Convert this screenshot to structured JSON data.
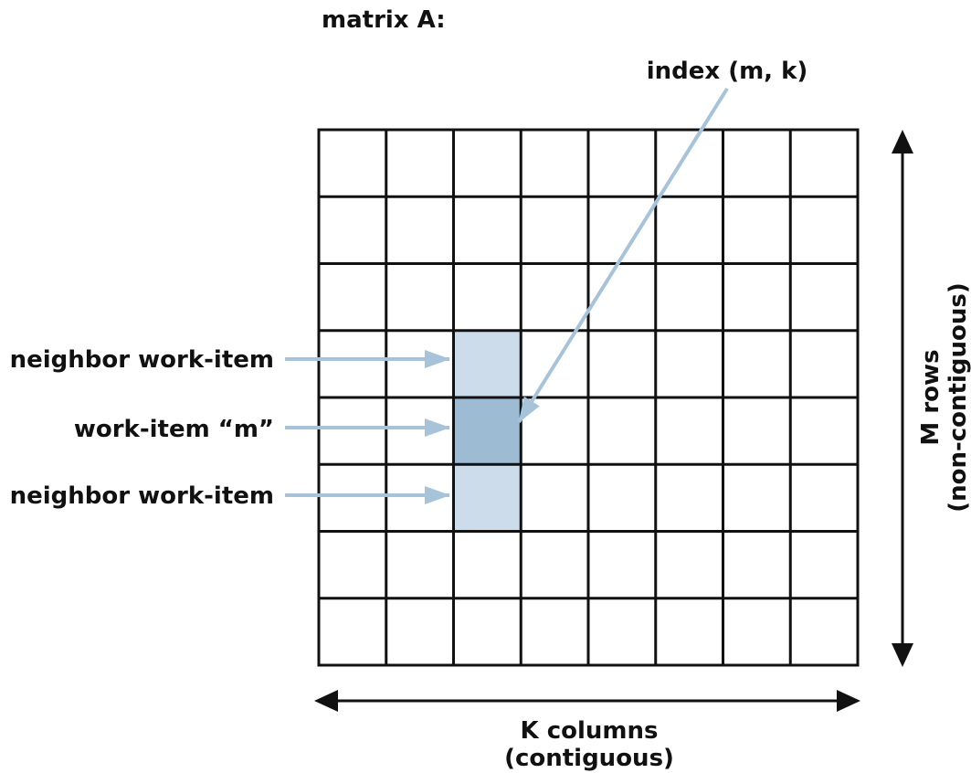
{
  "title": "matrix A:",
  "grid": {
    "rows": 8,
    "cols": 8
  },
  "highlighted_cells": [
    {
      "row": 3,
      "col": 2,
      "role": "neighbor",
      "color": "#cddcea"
    },
    {
      "row": 4,
      "col": 2,
      "role": "current",
      "color": "#9dbcd4"
    },
    {
      "row": 5,
      "col": 2,
      "role": "neighbor",
      "color": "#cddcea"
    }
  ],
  "labels": {
    "index": "index (m, k)",
    "neighbor_top": "neighbor work-item",
    "work_item": "work-item “m”",
    "neighbor_bottom": "neighbor work-item",
    "rows_line1": "M rows",
    "rows_line2": "(non-contiguous)",
    "cols_line1": "K columns",
    "cols_line2": "(contiguous)"
  },
  "colors": {
    "grid_line": "#111111",
    "pointer_arrow": "#a7c3d9",
    "dimension_arrow": "#111111"
  }
}
